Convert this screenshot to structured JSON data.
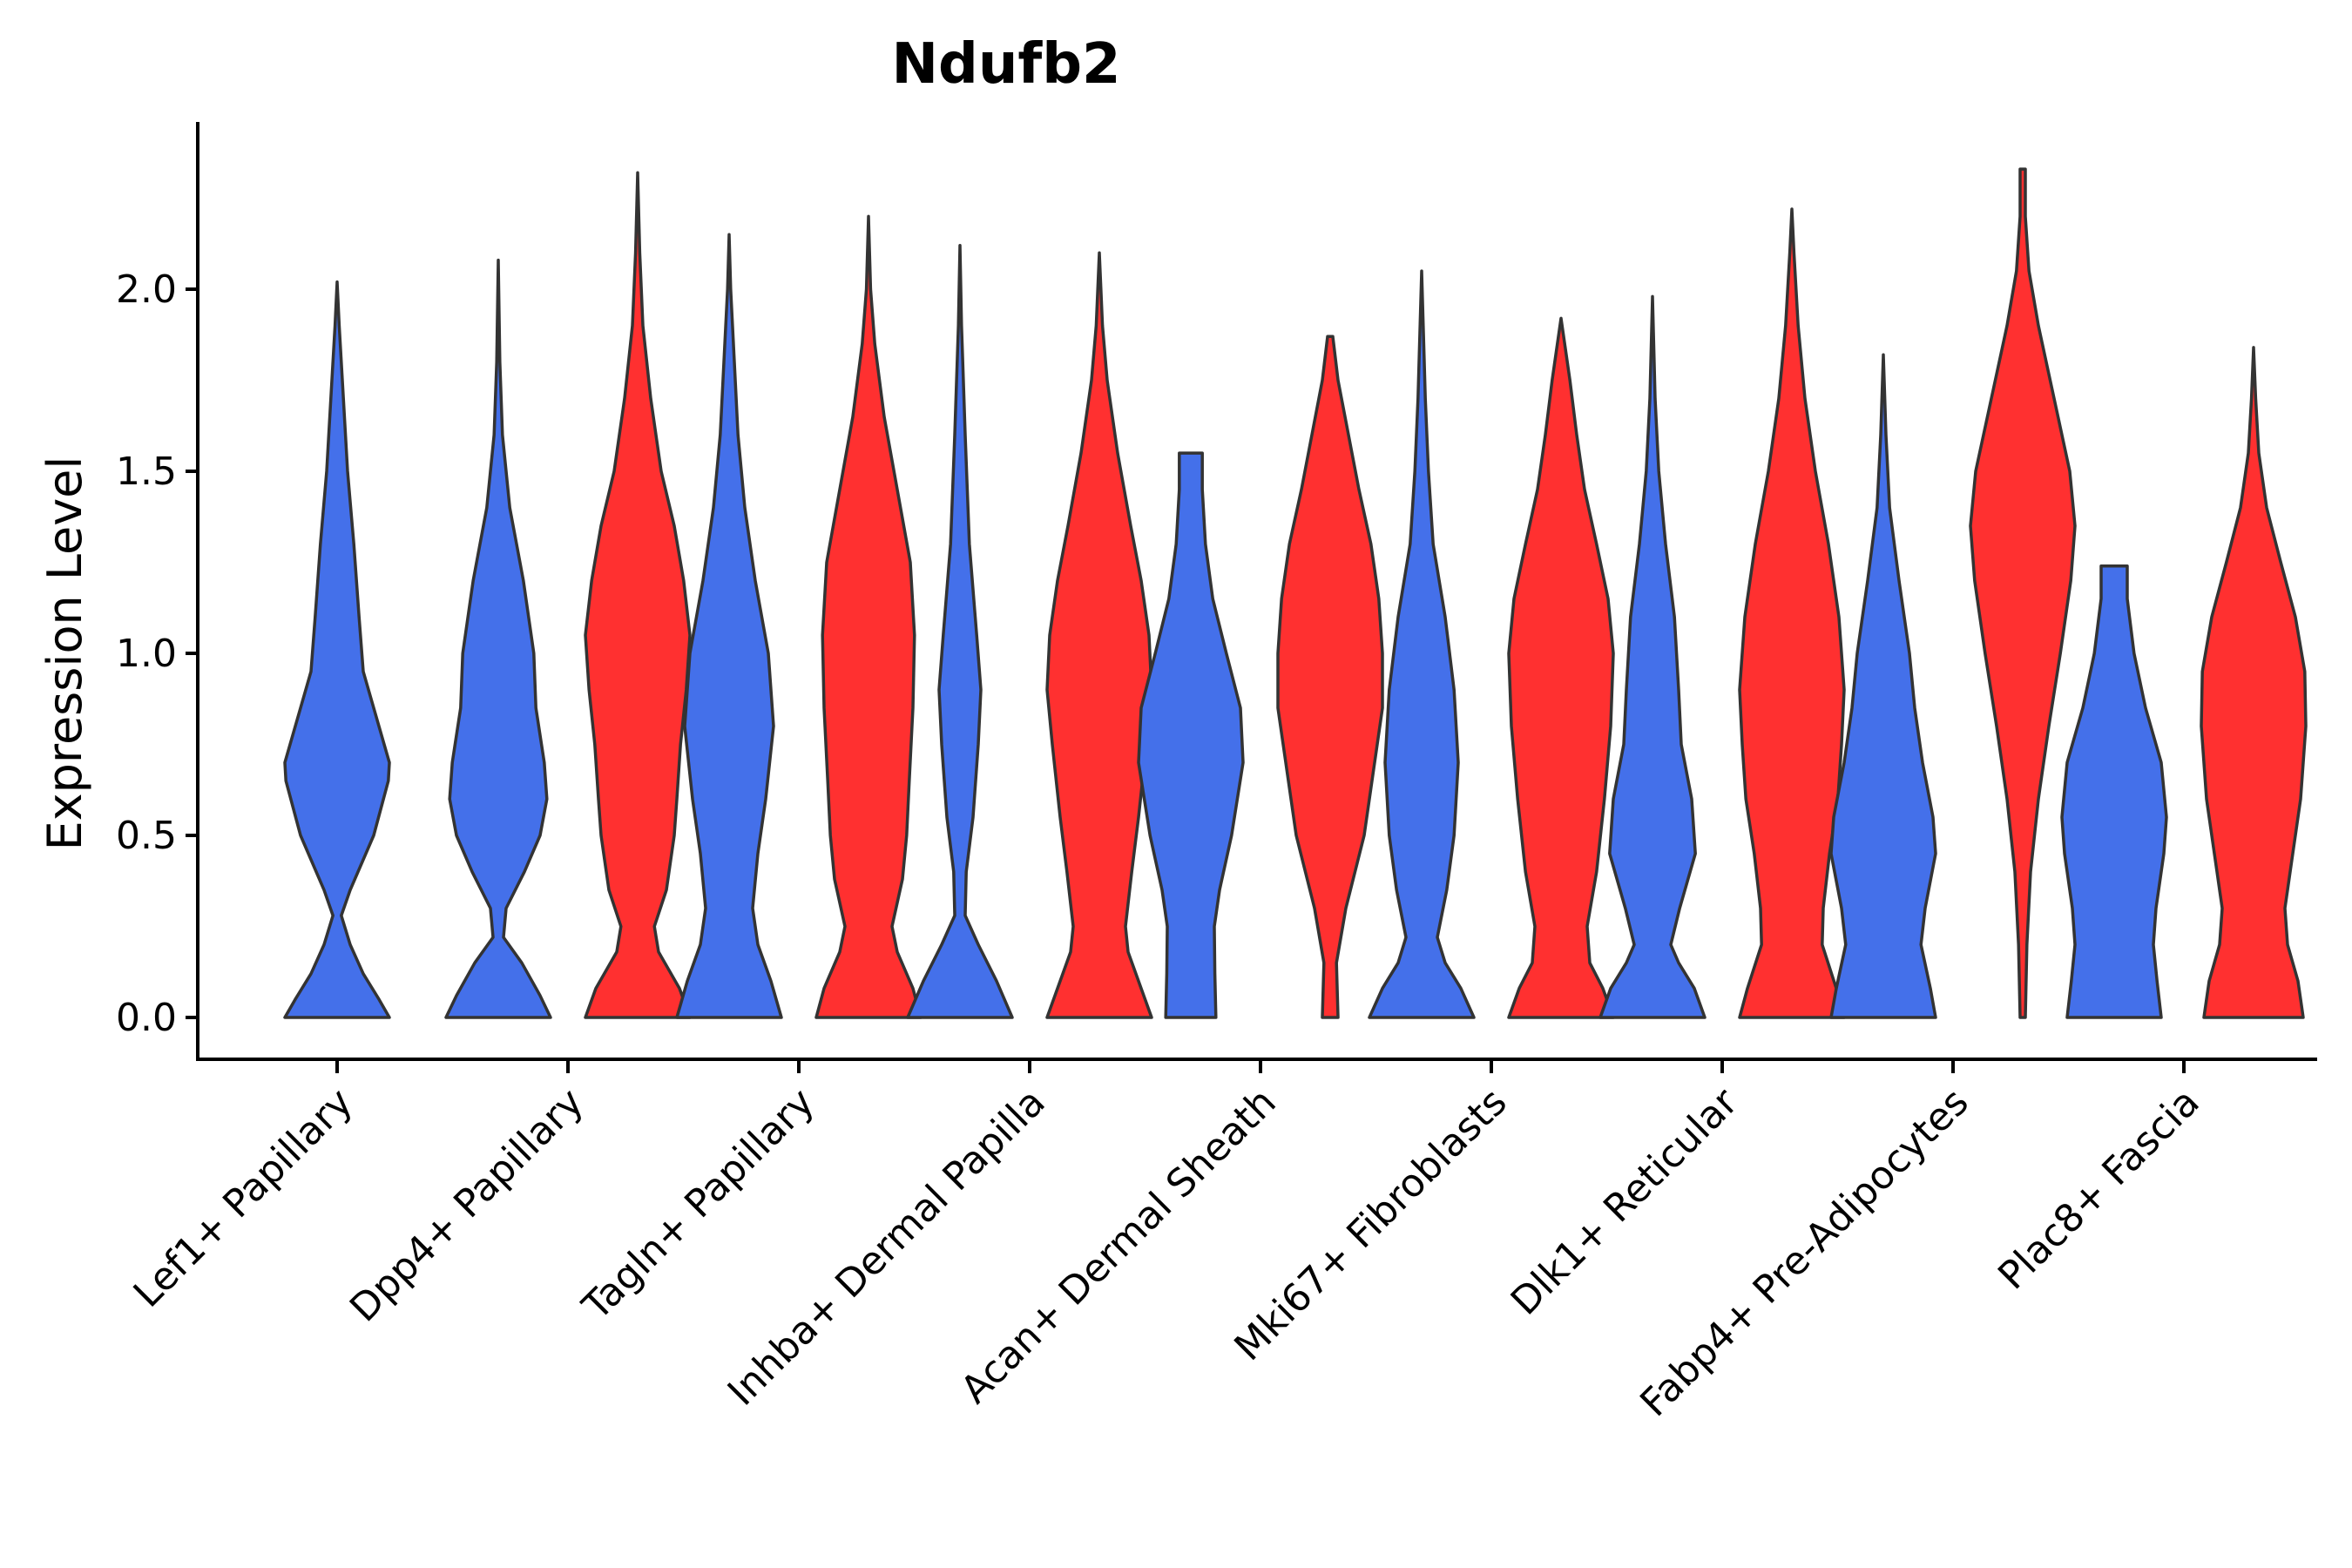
{
  "chart_data": {
    "type": "violin",
    "title": "Ndufb2",
    "ylabel": "Expression Level",
    "xlabel": "",
    "ylim": [
      -0.12,
      2.45
    ],
    "yticks": [
      "0.0",
      "0.5",
      "1.0",
      "1.5",
      "2.0"
    ],
    "categories": [
      "Lef1+ Papillary",
      "Dpp4+ Papillary",
      "Tagln+ Papillary",
      "Inhba+ Dermal Papilla",
      "Acan+ Dermal Sheath",
      "Mki67+ Fibroblasts",
      "Dlk1+ Reticular",
      "Fabp4+ Pre-Adipocytes",
      "Plac8+ Fascia"
    ],
    "colors": {
      "group_a": "#4470EA",
      "group_b": "#FF3030"
    },
    "violins": [
      {
        "category": "Lef1+ Papillary",
        "group": "a",
        "max": 2.02,
        "profile": [
          [
            0.0,
            1.0
          ],
          [
            0.05,
            0.8
          ],
          [
            0.12,
            0.5
          ],
          [
            0.2,
            0.25
          ],
          [
            0.28,
            0.08
          ],
          [
            0.35,
            0.25
          ],
          [
            0.5,
            0.7
          ],
          [
            0.65,
            0.98
          ],
          [
            0.7,
            1.0
          ],
          [
            0.8,
            0.8
          ],
          [
            0.95,
            0.5
          ],
          [
            1.1,
            0.42
          ],
          [
            1.3,
            0.32
          ],
          [
            1.5,
            0.2
          ],
          [
            1.7,
            0.12
          ],
          [
            1.9,
            0.04
          ],
          [
            2.02,
            0.0
          ]
        ]
      },
      {
        "category": "Dpp4+ Papillary",
        "group": "a",
        "max": 2.08,
        "profile": [
          [
            0.0,
            1.0
          ],
          [
            0.06,
            0.8
          ],
          [
            0.15,
            0.45
          ],
          [
            0.22,
            0.1
          ],
          [
            0.3,
            0.15
          ],
          [
            0.4,
            0.5
          ],
          [
            0.5,
            0.8
          ],
          [
            0.6,
            0.93
          ],
          [
            0.7,
            0.88
          ],
          [
            0.85,
            0.72
          ],
          [
            1.0,
            0.68
          ],
          [
            1.2,
            0.48
          ],
          [
            1.4,
            0.22
          ],
          [
            1.6,
            0.08
          ],
          [
            1.8,
            0.03
          ],
          [
            2.08,
            0.0
          ]
        ]
      },
      {
        "category": "Dpp4+ Papillary",
        "group": "b",
        "max": 2.32,
        "profile": [
          [
            0.0,
            1.0
          ],
          [
            0.08,
            0.8
          ],
          [
            0.18,
            0.4
          ],
          [
            0.25,
            0.32
          ],
          [
            0.35,
            0.55
          ],
          [
            0.5,
            0.7
          ],
          [
            0.6,
            0.75
          ],
          [
            0.75,
            0.82
          ],
          [
            0.9,
            0.93
          ],
          [
            1.05,
            1.0
          ],
          [
            1.2,
            0.88
          ],
          [
            1.35,
            0.7
          ],
          [
            1.5,
            0.45
          ],
          [
            1.7,
            0.25
          ],
          [
            1.9,
            0.1
          ],
          [
            2.1,
            0.04
          ],
          [
            2.32,
            0.0
          ]
        ]
      },
      {
        "category": "Tagln+ Papillary",
        "group": "a",
        "max": 2.15,
        "profile": [
          [
            0.0,
            1.0
          ],
          [
            0.1,
            0.8
          ],
          [
            0.2,
            0.55
          ],
          [
            0.3,
            0.45
          ],
          [
            0.45,
            0.55
          ],
          [
            0.6,
            0.7
          ],
          [
            0.8,
            0.85
          ],
          [
            1.0,
            0.75
          ],
          [
            1.2,
            0.5
          ],
          [
            1.4,
            0.3
          ],
          [
            1.6,
            0.17
          ],
          [
            1.8,
            0.1
          ],
          [
            2.0,
            0.03
          ],
          [
            2.15,
            0.0
          ]
        ]
      },
      {
        "category": "Tagln+ Papillary",
        "group": "b",
        "max": 2.2,
        "profile": [
          [
            0.0,
            1.0
          ],
          [
            0.08,
            0.85
          ],
          [
            0.18,
            0.55
          ],
          [
            0.25,
            0.45
          ],
          [
            0.38,
            0.65
          ],
          [
            0.5,
            0.73
          ],
          [
            0.65,
            0.78
          ],
          [
            0.85,
            0.85
          ],
          [
            1.05,
            0.88
          ],
          [
            1.25,
            0.8
          ],
          [
            1.45,
            0.55
          ],
          [
            1.65,
            0.3
          ],
          [
            1.85,
            0.12
          ],
          [
            2.0,
            0.04
          ],
          [
            2.2,
            0.0
          ]
        ]
      },
      {
        "category": "Inhba+ Dermal Papilla",
        "group": "a",
        "max": 2.12,
        "profile": [
          [
            0.0,
            1.0
          ],
          [
            0.1,
            0.7
          ],
          [
            0.2,
            0.35
          ],
          [
            0.28,
            0.1
          ],
          [
            0.4,
            0.12
          ],
          [
            0.55,
            0.25
          ],
          [
            0.75,
            0.35
          ],
          [
            0.9,
            0.4
          ],
          [
            1.05,
            0.32
          ],
          [
            1.3,
            0.18
          ],
          [
            1.6,
            0.1
          ],
          [
            1.9,
            0.03
          ],
          [
            2.12,
            0.0
          ]
        ]
      },
      {
        "category": "Inhba+ Dermal Papilla",
        "group": "b",
        "max": 2.1,
        "profile": [
          [
            0.0,
            1.0
          ],
          [
            0.08,
            0.8
          ],
          [
            0.18,
            0.55
          ],
          [
            0.25,
            0.5
          ],
          [
            0.4,
            0.62
          ],
          [
            0.55,
            0.75
          ],
          [
            0.75,
            0.9
          ],
          [
            0.9,
            1.0
          ],
          [
            1.05,
            0.95
          ],
          [
            1.2,
            0.8
          ],
          [
            1.35,
            0.6
          ],
          [
            1.55,
            0.35
          ],
          [
            1.75,
            0.15
          ],
          [
            1.9,
            0.06
          ],
          [
            2.1,
            0.0
          ]
        ]
      },
      {
        "category": "Acan+ Dermal Sheath",
        "group": "a",
        "max": 1.55,
        "profile": [
          [
            0.0,
            0.48
          ],
          [
            0.12,
            0.46
          ],
          [
            0.25,
            0.45
          ],
          [
            0.35,
            0.55
          ],
          [
            0.5,
            0.78
          ],
          [
            0.7,
            1.0
          ],
          [
            0.85,
            0.95
          ],
          [
            1.0,
            0.68
          ],
          [
            1.15,
            0.42
          ],
          [
            1.3,
            0.28
          ],
          [
            1.45,
            0.22
          ],
          [
            1.55,
            0.22
          ]
        ]
      },
      {
        "category": "Acan+ Dermal Sheath",
        "group": "b",
        "max": 1.87,
        "profile": [
          [
            0.0,
            0.15
          ],
          [
            0.15,
            0.12
          ],
          [
            0.3,
            0.3
          ],
          [
            0.5,
            0.65
          ],
          [
            0.7,
            0.85
          ],
          [
            0.85,
            1.0
          ],
          [
            1.0,
            1.0
          ],
          [
            1.15,
            0.93
          ],
          [
            1.3,
            0.78
          ],
          [
            1.45,
            0.55
          ],
          [
            1.6,
            0.35
          ],
          [
            1.75,
            0.15
          ],
          [
            1.87,
            0.05
          ]
        ]
      },
      {
        "category": "Mki67+ Fibroblasts",
        "group": "a",
        "max": 2.05,
        "profile": [
          [
            0.0,
            1.0
          ],
          [
            0.08,
            0.75
          ],
          [
            0.15,
            0.45
          ],
          [
            0.22,
            0.3
          ],
          [
            0.35,
            0.48
          ],
          [
            0.5,
            0.62
          ],
          [
            0.7,
            0.7
          ],
          [
            0.9,
            0.62
          ],
          [
            1.1,
            0.45
          ],
          [
            1.3,
            0.22
          ],
          [
            1.5,
            0.13
          ],
          [
            1.7,
            0.07
          ],
          [
            1.9,
            0.03
          ],
          [
            2.05,
            0.0
          ]
        ]
      },
      {
        "category": "Mki67+ Fibroblasts",
        "group": "b",
        "max": 1.92,
        "profile": [
          [
            0.0,
            1.0
          ],
          [
            0.08,
            0.8
          ],
          [
            0.15,
            0.55
          ],
          [
            0.25,
            0.5
          ],
          [
            0.4,
            0.68
          ],
          [
            0.6,
            0.83
          ],
          [
            0.8,
            0.95
          ],
          [
            1.0,
            1.0
          ],
          [
            1.15,
            0.9
          ],
          [
            1.3,
            0.68
          ],
          [
            1.45,
            0.45
          ],
          [
            1.6,
            0.3
          ],
          [
            1.75,
            0.17
          ],
          [
            1.92,
            0.0
          ]
        ]
      },
      {
        "category": "Dlk1+ Reticular",
        "group": "a",
        "max": 1.98,
        "profile": [
          [
            0.0,
            1.0
          ],
          [
            0.08,
            0.8
          ],
          [
            0.15,
            0.5
          ],
          [
            0.2,
            0.35
          ],
          [
            0.3,
            0.52
          ],
          [
            0.45,
            0.82
          ],
          [
            0.6,
            0.75
          ],
          [
            0.75,
            0.55
          ],
          [
            0.9,
            0.5
          ],
          [
            1.1,
            0.42
          ],
          [
            1.3,
            0.25
          ],
          [
            1.5,
            0.12
          ],
          [
            1.7,
            0.05
          ],
          [
            1.98,
            0.0
          ]
        ]
      },
      {
        "category": "Dlk1+ Reticular",
        "group": "b",
        "max": 2.22,
        "profile": [
          [
            0.0,
            1.0
          ],
          [
            0.08,
            0.85
          ],
          [
            0.2,
            0.58
          ],
          [
            0.3,
            0.6
          ],
          [
            0.45,
            0.72
          ],
          [
            0.6,
            0.88
          ],
          [
            0.75,
            0.95
          ],
          [
            0.9,
            1.0
          ],
          [
            1.1,
            0.9
          ],
          [
            1.3,
            0.7
          ],
          [
            1.5,
            0.45
          ],
          [
            1.7,
            0.25
          ],
          [
            1.9,
            0.12
          ],
          [
            2.1,
            0.04
          ],
          [
            2.22,
            0.0
          ]
        ]
      },
      {
        "category": "Fabp4+ Pre-Adipocytes",
        "group": "a",
        "max": 1.82,
        "profile": [
          [
            0.0,
            1.0
          ],
          [
            0.08,
            0.9
          ],
          [
            0.2,
            0.72
          ],
          [
            0.3,
            0.8
          ],
          [
            0.45,
            1.0
          ],
          [
            0.55,
            0.95
          ],
          [
            0.7,
            0.75
          ],
          [
            0.85,
            0.6
          ],
          [
            1.0,
            0.5
          ],
          [
            1.2,
            0.3
          ],
          [
            1.4,
            0.12
          ],
          [
            1.6,
            0.05
          ],
          [
            1.82,
            0.0
          ]
        ]
      },
      {
        "category": "Fabp4+ Pre-Adipocytes",
        "group": "b",
        "max": 2.33,
        "profile": [
          [
            0.0,
            0.05
          ],
          [
            0.2,
            0.08
          ],
          [
            0.4,
            0.15
          ],
          [
            0.6,
            0.3
          ],
          [
            0.8,
            0.5
          ],
          [
            1.0,
            0.72
          ],
          [
            1.2,
            0.92
          ],
          [
            1.35,
            1.0
          ],
          [
            1.5,
            0.9
          ],
          [
            1.7,
            0.6
          ],
          [
            1.9,
            0.3
          ],
          [
            2.05,
            0.12
          ],
          [
            2.2,
            0.05
          ],
          [
            2.33,
            0.05
          ]
        ]
      },
      {
        "category": "Plac8+ Fascia",
        "group": "a",
        "max": 1.24,
        "profile": [
          [
            0.0,
            0.9
          ],
          [
            0.1,
            0.82
          ],
          [
            0.2,
            0.75
          ],
          [
            0.3,
            0.8
          ],
          [
            0.45,
            0.95
          ],
          [
            0.55,
            1.0
          ],
          [
            0.7,
            0.9
          ],
          [
            0.85,
            0.6
          ],
          [
            1.0,
            0.38
          ],
          [
            1.15,
            0.25
          ],
          [
            1.24,
            0.25
          ]
        ]
      },
      {
        "category": "Plac8+ Fascia",
        "group": "b",
        "max": 1.84,
        "profile": [
          [
            0.0,
            0.95
          ],
          [
            0.1,
            0.85
          ],
          [
            0.2,
            0.65
          ],
          [
            0.3,
            0.6
          ],
          [
            0.45,
            0.75
          ],
          [
            0.6,
            0.9
          ],
          [
            0.8,
            1.0
          ],
          [
            0.95,
            0.98
          ],
          [
            1.1,
            0.8
          ],
          [
            1.25,
            0.52
          ],
          [
            1.4,
            0.25
          ],
          [
            1.55,
            0.1
          ],
          [
            1.7,
            0.04
          ],
          [
            1.84,
            0.0
          ]
        ]
      }
    ]
  }
}
